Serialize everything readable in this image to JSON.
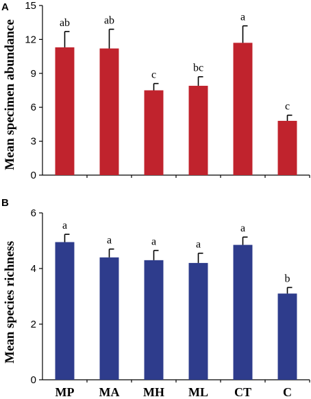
{
  "chart_data": [
    {
      "type": "bar",
      "panel_label": "A",
      "ylabel": "Mean specimen abundance",
      "categories": [
        "MP",
        "MA",
        "MH",
        "ML",
        "CT",
        "C"
      ],
      "values": [
        11.3,
        11.2,
        7.5,
        7.9,
        11.7,
        4.8
      ],
      "errors": [
        1.4,
        1.7,
        0.6,
        0.8,
        1.5,
        0.5
      ],
      "letters": [
        "ab",
        "ab",
        "c",
        "bc",
        "a",
        "c"
      ],
      "ylim": [
        0,
        15
      ],
      "yticks": [
        "0",
        "3",
        "6",
        "9",
        "12",
        "15"
      ],
      "color": "#C0232D",
      "show_category_labels": false
    },
    {
      "type": "bar",
      "panel_label": "B",
      "ylabel": "Mean species richness",
      "categories": [
        "MP",
        "MA",
        "MH",
        "ML",
        "CT",
        "C"
      ],
      "values": [
        4.95,
        4.4,
        4.3,
        4.2,
        4.85,
        3.1
      ],
      "errors": [
        0.28,
        0.3,
        0.35,
        0.35,
        0.28,
        0.22
      ],
      "letters": [
        "a",
        "a",
        "a",
        "a",
        "a",
        "b"
      ],
      "ylim": [
        0,
        6
      ],
      "yticks": [
        "0",
        "2",
        "4",
        "6"
      ],
      "color": "#2E3C8C",
      "show_category_labels": true
    }
  ]
}
